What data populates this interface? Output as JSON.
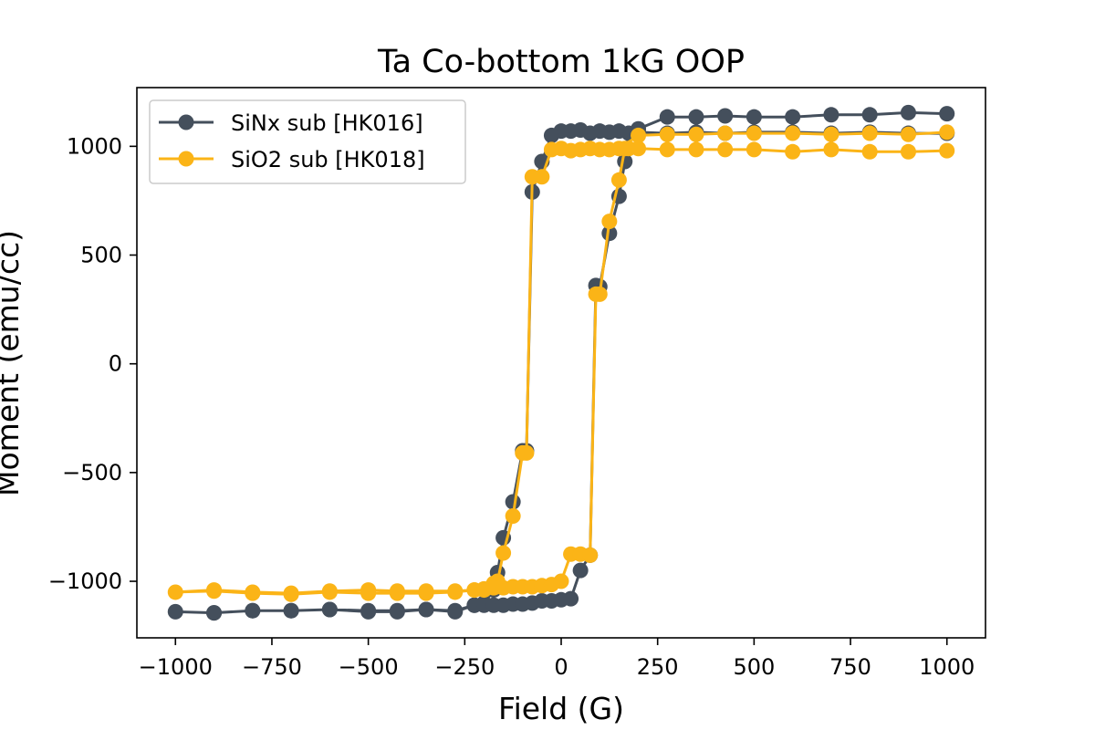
{
  "chart_data": {
    "type": "line",
    "title": "Ta Co-bottom 1kG OOP",
    "xlabel": "Field (G)",
    "ylabel": "Moment (emu/cc)",
    "xlim": [
      -1100,
      1100
    ],
    "ylim": [
      -1260,
      1270
    ],
    "xticks": [
      -1000,
      -750,
      -500,
      -250,
      0,
      250,
      500,
      750,
      1000
    ],
    "xtick_labels": [
      "−1000",
      "−750",
      "−500",
      "−250",
      "0",
      "250",
      "500",
      "750",
      "1000"
    ],
    "yticks": [
      -1000,
      -500,
      0,
      500,
      1000
    ],
    "ytick_labels": [
      "−1000",
      "−500",
      "0",
      "500",
      "1000"
    ],
    "grid": false,
    "legend": "top-left",
    "series": [
      {
        "name": "SiNx sub [HK016]",
        "color": "#444f5c",
        "x": [
          1000,
          900,
          800,
          700,
          600,
          500,
          425,
          350,
          275,
          200,
          150,
          125,
          100,
          75,
          50,
          25,
          0,
          -25,
          -50,
          -75,
          -90,
          -100,
          -125,
          -150,
          -165,
          -175,
          -200,
          -225,
          -275,
          -350,
          -425,
          -500,
          -600,
          -700,
          -800,
          -900,
          -1000,
          -900,
          -800,
          -700,
          -600,
          -500,
          -425,
          -350,
          -275,
          -225,
          -200,
          -175,
          -150,
          -125,
          -100,
          -75,
          -50,
          -25,
          0,
          25,
          50,
          75,
          90,
          100,
          125,
          150,
          165,
          175,
          200,
          275,
          350,
          425,
          500,
          600,
          700,
          800,
          900,
          1000
        ],
        "y": [
          1060,
          1060,
          1065,
          1060,
          1065,
          1065,
          1060,
          1065,
          1060,
          1065,
          1070,
          1065,
          1070,
          1060,
          1075,
          1070,
          1070,
          1050,
          930,
          790,
          -400,
          -400,
          -635,
          -800,
          -960,
          -1040,
          -1100,
          -1110,
          -1140,
          -1130,
          -1140,
          -1140,
          -1130,
          -1135,
          -1135,
          -1145,
          -1140,
          -1145,
          -1135,
          -1135,
          -1130,
          -1135,
          -1135,
          -1130,
          -1135,
          -1110,
          -1110,
          -1110,
          -1110,
          -1105,
          -1105,
          -1100,
          -1090,
          -1090,
          -1085,
          -1080,
          -950,
          -880,
          360,
          355,
          600,
          770,
          930,
          1060,
          1080,
          1135,
          1135,
          1140,
          1135,
          1135,
          1145,
          1145,
          1155,
          1150
        ]
      },
      {
        "name": "SiO2 sub [HK018]",
        "color": "#fbb417",
        "x": [
          1000,
          900,
          800,
          700,
          600,
          500,
          425,
          350,
          275,
          200,
          150,
          125,
          100,
          75,
          50,
          25,
          0,
          -25,
          -50,
          -75,
          -90,
          -100,
          -125,
          -150,
          -165,
          -175,
          -200,
          -225,
          -275,
          -350,
          -425,
          -500,
          -600,
          -700,
          -800,
          -900,
          -1000,
          -900,
          -800,
          -700,
          -600,
          -500,
          -425,
          -350,
          -275,
          -225,
          -200,
          -175,
          -150,
          -125,
          -100,
          -75,
          -50,
          -25,
          0,
          25,
          50,
          75,
          90,
          100,
          125,
          150,
          165,
          175,
          200,
          275,
          350,
          425,
          500,
          600,
          700,
          800,
          900,
          1000
        ],
        "y": [
          1065,
          1055,
          1060,
          1055,
          1060,
          1060,
          1060,
          1055,
          1055,
          1050,
          990,
          985,
          985,
          990,
          985,
          980,
          990,
          985,
          860,
          860,
          -410,
          -410,
          -700,
          -870,
          -1000,
          -1010,
          -1040,
          -1040,
          -1050,
          -1055,
          -1055,
          -1055,
          -1050,
          -1060,
          -1055,
          -1045,
          -1050,
          -1040,
          -1050,
          -1055,
          -1045,
          -1040,
          -1045,
          -1045,
          -1045,
          -1040,
          -1035,
          -1030,
          -1030,
          -1025,
          -1025,
          -1025,
          -1020,
          -1015,
          -1000,
          -875,
          -875,
          -880,
          320,
          320,
          655,
          845,
          990,
          990,
          990,
          985,
          985,
          985,
          985,
          975,
          985,
          975,
          975,
          980
        ]
      }
    ]
  }
}
